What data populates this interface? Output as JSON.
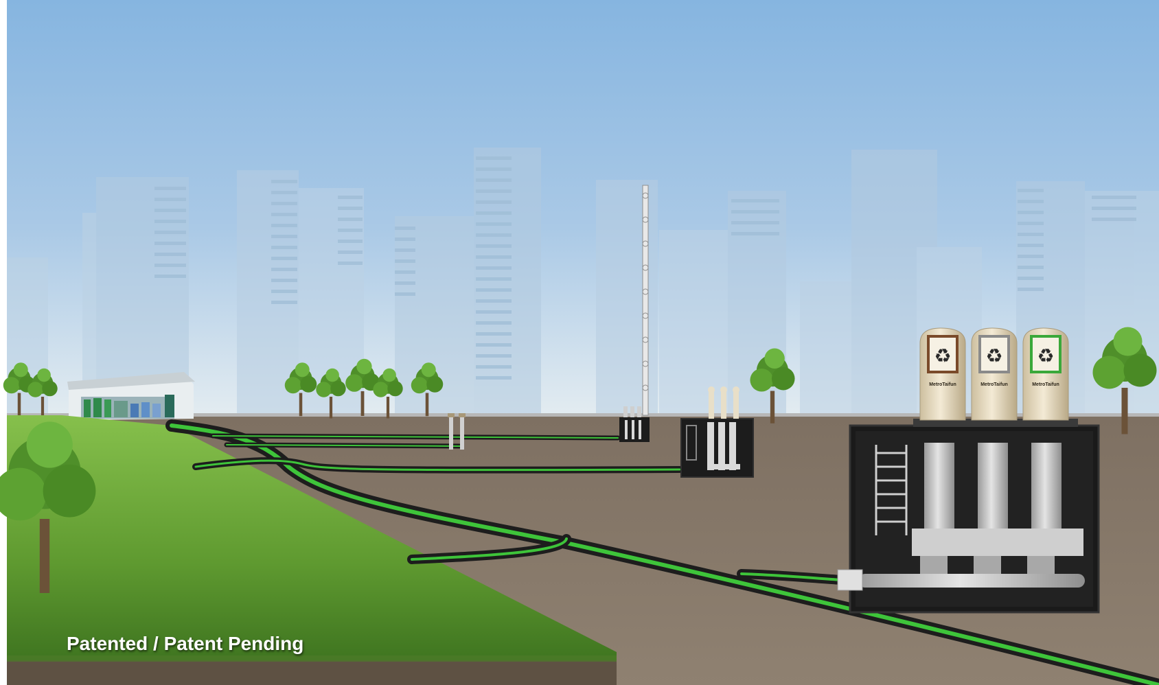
{
  "caption": {
    "text": "Patented / Patent Pending"
  },
  "bins": {
    "brand": "MetroTaifun",
    "items": [
      {
        "accent": "#7a4a2a",
        "symbol": "♻"
      },
      {
        "accent": "#8a8a8a",
        "symbol": "♻"
      },
      {
        "accent": "#3aa83a",
        "symbol": "♻"
      }
    ]
  },
  "colors": {
    "sky_top": "#8db8df",
    "sky_bottom": "#dbe7ef",
    "ground": "#8a7b6c",
    "grass": "#6aa83a",
    "pipe_green": "#3ec43a",
    "pipe_dark": "#1d1d1d",
    "chamber": "#1c1c1c"
  }
}
